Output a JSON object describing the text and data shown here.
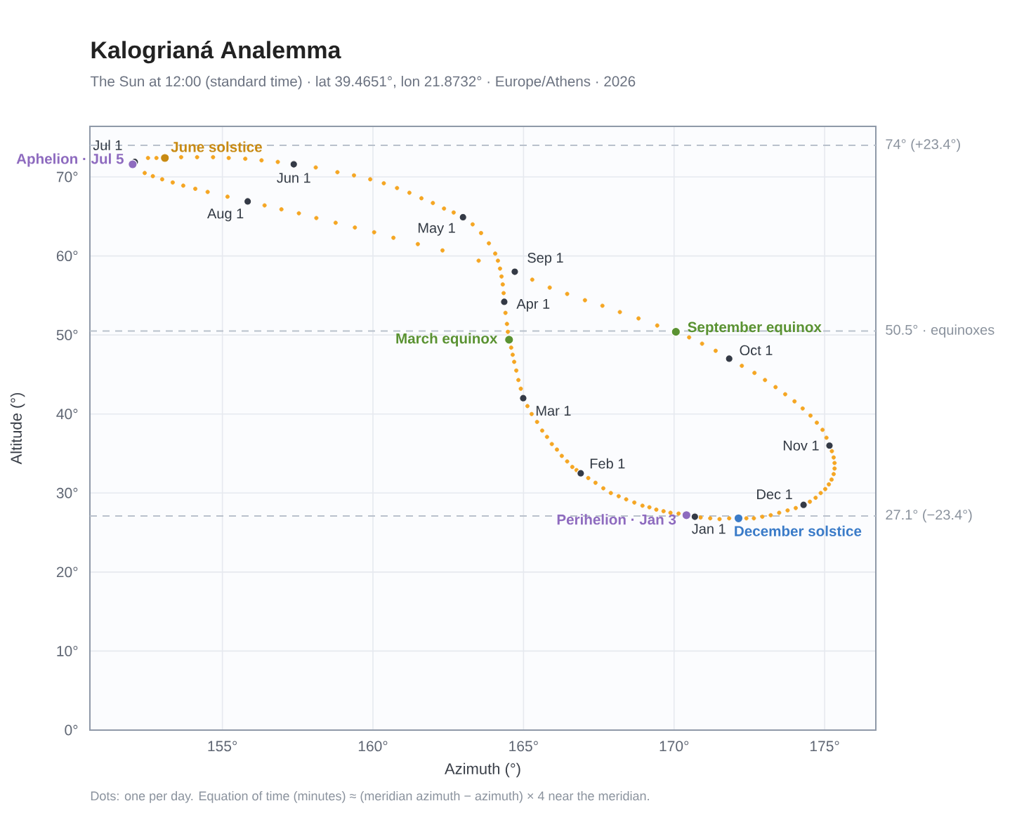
{
  "chart_data": {
    "type": "scatter",
    "title": "Kalogrianá Analemma",
    "subtitle": "The Sun at 12:00 (standard time) · lat 39.4651°, lon 21.8732° · Europe/Athens · 2026",
    "xlabel": "Azimuth (°)",
    "ylabel": "Altitude (°)",
    "xlim": [
      150.6,
      176.7
    ],
    "ylim": [
      0,
      76.4
    ],
    "xticks": [
      {
        "value": 155,
        "label": "155°"
      },
      {
        "value": 160,
        "label": "160°"
      },
      {
        "value": 165,
        "label": "165°"
      },
      {
        "value": 170,
        "label": "170°"
      },
      {
        "value": 175,
        "label": "175°"
      }
    ],
    "yticks": [
      {
        "value": 0,
        "label": "0°"
      },
      {
        "value": 10,
        "label": "10°"
      },
      {
        "value": 20,
        "label": "20°"
      },
      {
        "value": 30,
        "label": "30°"
      },
      {
        "value": 40,
        "label": "40°"
      },
      {
        "value": 50,
        "label": "50°"
      },
      {
        "value": 60,
        "label": "60°"
      },
      {
        "value": 70,
        "label": "70°"
      }
    ],
    "grid": true,
    "marker": "circle",
    "series": [
      {
        "color": "#f5a623",
        "x": [
          170.15,
          169.88,
          169.65,
          169.41,
          169.18,
          168.95,
          168.68,
          168.41,
          168.16,
          167.9,
          167.65,
          167.39,
          167.15,
          166.76,
          166.62,
          166.45,
          166.27,
          166.11,
          165.94,
          165.78,
          165.62,
          165.45,
          165.27,
          165.13,
          164.91,
          164.83,
          164.76,
          164.69,
          164.64,
          164.59,
          164.48,
          164.45,
          164.4,
          164.34,
          164.31,
          164.27,
          164.22,
          164.15,
          164.06,
          163.85,
          163.59,
          163.31,
          162.68,
          162.36,
          161.99,
          161.61,
          161.21,
          160.8,
          160.36,
          159.91,
          159.37,
          158.82,
          158.1,
          156.84,
          156.3,
          155.76,
          155.21,
          154.69,
          154.16,
          153.63,
          152.81,
          152.53,
          152.42,
          152.69,
          153.0,
          153.35,
          153.7,
          154.1,
          154.51,
          155.17,
          156.4,
          156.96,
          157.54,
          158.12,
          158.76,
          159.4,
          160.04,
          160.68,
          161.49,
          162.31,
          163.51,
          165.29,
          165.87,
          166.45,
          167.04,
          167.62,
          168.2,
          168.82,
          169.44,
          170.5,
          170.93,
          171.38,
          172.25,
          172.67,
          173.02,
          173.37,
          173.69,
          174.0,
          174.27,
          174.53,
          174.74,
          174.93,
          175.06,
          175.24,
          175.3,
          175.33,
          175.33,
          175.3,
          175.23,
          175.14,
          175.02,
          174.87,
          174.7,
          174.51,
          174.04,
          173.77,
          173.49,
          173.21,
          172.93,
          172.65,
          172.4,
          171.83,
          171.51,
          171.2,
          170.88
        ],
        "values": [
          27.4,
          27.5,
          27.7,
          27.9,
          28.2,
          28.4,
          28.8,
          29.2,
          29.6,
          30.0,
          30.6,
          31.3,
          31.9,
          32.9,
          33.3,
          34.0,
          34.7,
          35.5,
          36.2,
          37.1,
          37.9,
          39.0,
          40.0,
          41.0,
          43.2,
          44.3,
          45.5,
          46.6,
          47.5,
          48.4,
          50.4,
          51.4,
          52.8,
          55.3,
          56.4,
          57.4,
          58.4,
          59.4,
          60.3,
          61.6,
          62.9,
          64.0,
          65.5,
          66.0,
          66.7,
          67.3,
          68.0,
          68.6,
          69.2,
          69.7,
          70.2,
          70.6,
          71.2,
          71.9,
          72.1,
          72.3,
          72.4,
          72.5,
          72.5,
          72.5,
          72.4,
          72.4,
          70.5,
          70.1,
          69.7,
          69.3,
          68.9,
          68.5,
          68.1,
          67.5,
          66.4,
          65.9,
          65.4,
          64.8,
          64.2,
          63.6,
          63.0,
          62.3,
          61.5,
          60.7,
          59.4,
          57.0,
          56.0,
          55.2,
          54.4,
          53.7,
          52.9,
          52.1,
          51.2,
          49.7,
          48.9,
          48.0,
          46.1,
          45.2,
          44.3,
          43.4,
          42.5,
          41.6,
          40.7,
          39.8,
          38.9,
          38.0,
          37.0,
          35.3,
          34.5,
          33.8,
          33.1,
          32.4,
          31.7,
          31.1,
          30.5,
          30.0,
          29.4,
          28.9,
          28.1,
          27.8,
          27.5,
          27.2,
          27.0,
          26.8,
          26.8,
          26.8,
          26.7,
          26.8,
          26.9
        ]
      },
      {
        "color": "#343a46",
        "x": [
          170.69,
          166.9,
          164.99,
          164.36,
          162.99,
          157.37,
          152.09,
          155.84,
          164.71,
          171.83,
          175.16,
          174.3
        ],
        "values": [
          27.0,
          32.5,
          42.0,
          54.2,
          64.9,
          71.6,
          71.9,
          66.9,
          58.0,
          47.0,
          36.0,
          28.5
        ]
      },
      {
        "name": "June solstice",
        "color": "#c88a12",
        "x": [
          153.09
        ],
        "values": [
          72.4
        ]
      },
      {
        "name": "December solstice",
        "color": "#3a7bc8",
        "x": [
          172.14
        ],
        "values": [
          26.8
        ]
      },
      {
        "name": "March equinox",
        "color": "#5a9232",
        "x": [
          164.52
        ],
        "values": [
          49.4
        ]
      },
      {
        "name": "September equinox",
        "color": "#5a9232",
        "x": [
          170.06
        ],
        "values": [
          50.4
        ]
      },
      {
        "name": "Perihelion · Jan 3",
        "color": "#8e6bbf",
        "x": [
          170.41
        ],
        "values": [
          27.2
        ]
      },
      {
        "name": "Aphelion · Jul 5",
        "color": "#8e6bbf",
        "x": [
          152.02
        ],
        "values": [
          71.6
        ]
      }
    ],
    "ref_lines": [
      {
        "axis": "y",
        "value": 74,
        "label": "74° (+23.4°)",
        "color": "#b9c1cc",
        "line_style": "dashed"
      },
      {
        "axis": "y",
        "value": 50.5,
        "label": "50.5° · equinoxes",
        "color": "#b9c1cc",
        "line_style": "dashed"
      },
      {
        "axis": "y",
        "value": 27.1,
        "label": "27.1° (−23.4°)",
        "color": "#b9c1cc",
        "line_style": "dashed"
      }
    ],
    "annotations": [
      {
        "text": "Jan 1",
        "x": 170.69,
        "y": 27.0
      },
      {
        "text": "Feb 1",
        "x": 166.9,
        "y": 32.5
      },
      {
        "text": "Mar 1",
        "x": 164.99,
        "y": 42.0
      },
      {
        "text": "Apr 1",
        "x": 164.36,
        "y": 54.2
      },
      {
        "text": "May 1",
        "x": 162.99,
        "y": 64.9
      },
      {
        "text": "Jun 1",
        "x": 157.37,
        "y": 71.6
      },
      {
        "text": "Jul 1",
        "x": 152.09,
        "y": 71.9
      },
      {
        "text": "Aug 1",
        "x": 155.84,
        "y": 66.9
      },
      {
        "text": "Sep 1",
        "x": 164.71,
        "y": 58.0
      },
      {
        "text": "Oct 1",
        "x": 171.83,
        "y": 47.0
      },
      {
        "text": "Nov 1",
        "x": 175.16,
        "y": 36.0
      },
      {
        "text": "Dec 1",
        "x": 174.3,
        "y": 28.5
      },
      "Dots: one per day. Equation of time (minutes) ≈ (meridian azimuth − azimuth) × 4 near the meridian."
    ]
  }
}
